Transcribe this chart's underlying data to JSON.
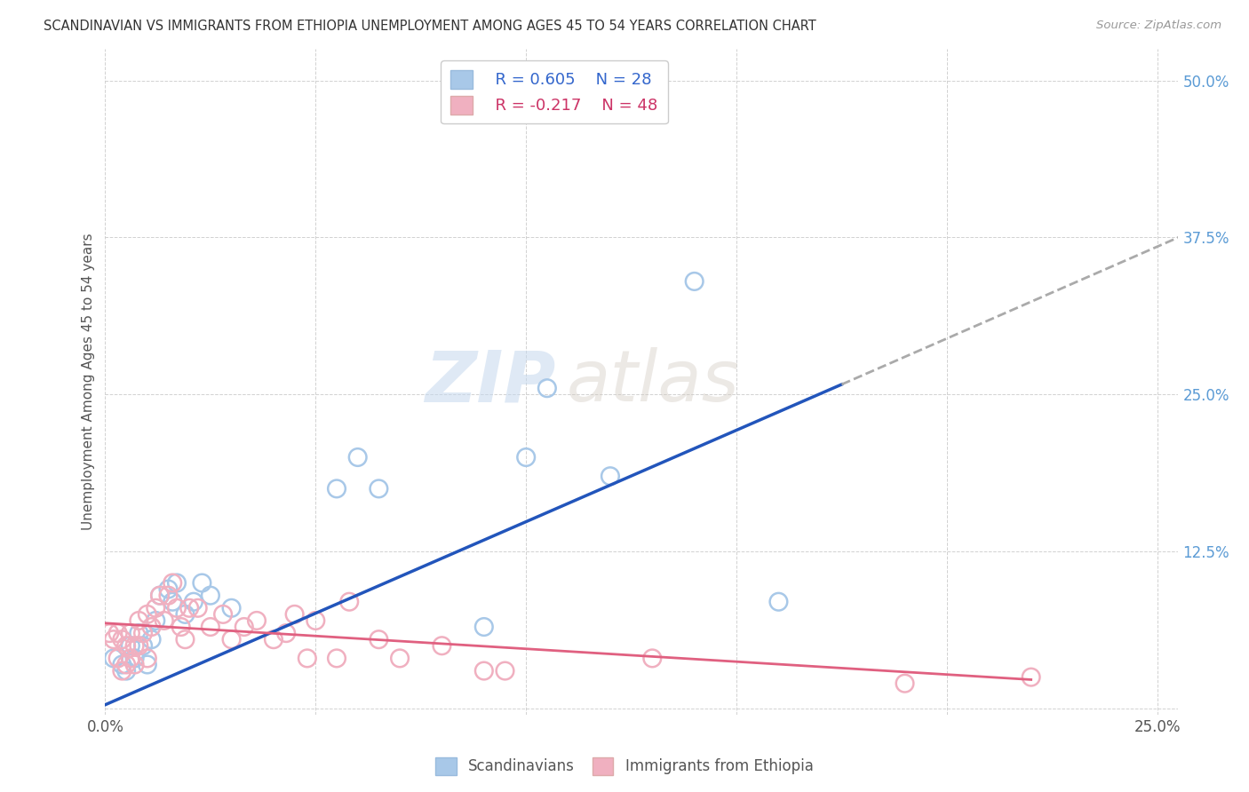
{
  "title": "SCANDINAVIAN VS IMMIGRANTS FROM ETHIOPIA UNEMPLOYMENT AMONG AGES 45 TO 54 YEARS CORRELATION CHART",
  "source": "Source: ZipAtlas.com",
  "ylabel": "Unemployment Among Ages 45 to 54 years",
  "xlim": [
    0.0,
    0.255
  ],
  "ylim": [
    -0.005,
    0.525
  ],
  "x_ticks": [
    0.0,
    0.05,
    0.1,
    0.15,
    0.2,
    0.25
  ],
  "x_tick_labels": [
    "0.0%",
    "",
    "",
    "",
    "",
    "25.0%"
  ],
  "y_ticks": [
    0.0,
    0.125,
    0.25,
    0.375,
    0.5
  ],
  "y_tick_labels": [
    "",
    "12.5%",
    "25.0%",
    "37.5%",
    "50.0%"
  ],
  "legend_R1": "R = 0.605",
  "legend_N1": "N = 28",
  "legend_R2": "R = -0.217",
  "legend_N2": "N = 48",
  "color_scand": "#a8c8e8",
  "color_ethiopia": "#f0b0c0",
  "trend_scand_color": "#2255bb",
  "trend_ethiopia_color": "#e06080",
  "trend_ext_color": "#aaaaaa",
  "scand_x": [
    0.002,
    0.004,
    0.005,
    0.006,
    0.007,
    0.008,
    0.009,
    0.01,
    0.011,
    0.012,
    0.013,
    0.015,
    0.016,
    0.017,
    0.019,
    0.021,
    0.023,
    0.025,
    0.03,
    0.055,
    0.06,
    0.065,
    0.09,
    0.1,
    0.105,
    0.12,
    0.14,
    0.16
  ],
  "scand_y": [
    0.04,
    0.035,
    0.03,
    0.05,
    0.04,
    0.06,
    0.05,
    0.035,
    0.055,
    0.07,
    0.09,
    0.095,
    0.085,
    0.1,
    0.075,
    0.085,
    0.1,
    0.09,
    0.08,
    0.175,
    0.2,
    0.175,
    0.065,
    0.2,
    0.255,
    0.185,
    0.34,
    0.085
  ],
  "ethiopia_x": [
    0.001,
    0.002,
    0.003,
    0.003,
    0.004,
    0.004,
    0.005,
    0.005,
    0.006,
    0.006,
    0.007,
    0.007,
    0.008,
    0.008,
    0.009,
    0.01,
    0.01,
    0.011,
    0.012,
    0.013,
    0.014,
    0.015,
    0.016,
    0.017,
    0.018,
    0.019,
    0.02,
    0.022,
    0.025,
    0.028,
    0.03,
    0.033,
    0.036,
    0.04,
    0.043,
    0.045,
    0.048,
    0.05,
    0.055,
    0.058,
    0.065,
    0.07,
    0.08,
    0.09,
    0.095,
    0.13,
    0.19,
    0.22
  ],
  "ethiopia_y": [
    0.06,
    0.055,
    0.06,
    0.04,
    0.055,
    0.03,
    0.05,
    0.035,
    0.06,
    0.04,
    0.05,
    0.035,
    0.07,
    0.05,
    0.06,
    0.075,
    0.04,
    0.065,
    0.08,
    0.09,
    0.07,
    0.09,
    0.1,
    0.08,
    0.065,
    0.055,
    0.08,
    0.08,
    0.065,
    0.075,
    0.055,
    0.065,
    0.07,
    0.055,
    0.06,
    0.075,
    0.04,
    0.07,
    0.04,
    0.085,
    0.055,
    0.04,
    0.05,
    0.03,
    0.03,
    0.04,
    0.02,
    0.025
  ],
  "trend_scand_x0": 0.0,
  "trend_scand_y0": 0.003,
  "trend_scand_x1": 0.175,
  "trend_scand_y1": 0.258,
  "trend_scand_ext_x1": 0.255,
  "trend_scand_ext_y1": 0.375,
  "trend_eth_x0": 0.0,
  "trend_eth_y0": 0.068,
  "trend_eth_x1": 0.22,
  "trend_eth_y1": 0.023
}
